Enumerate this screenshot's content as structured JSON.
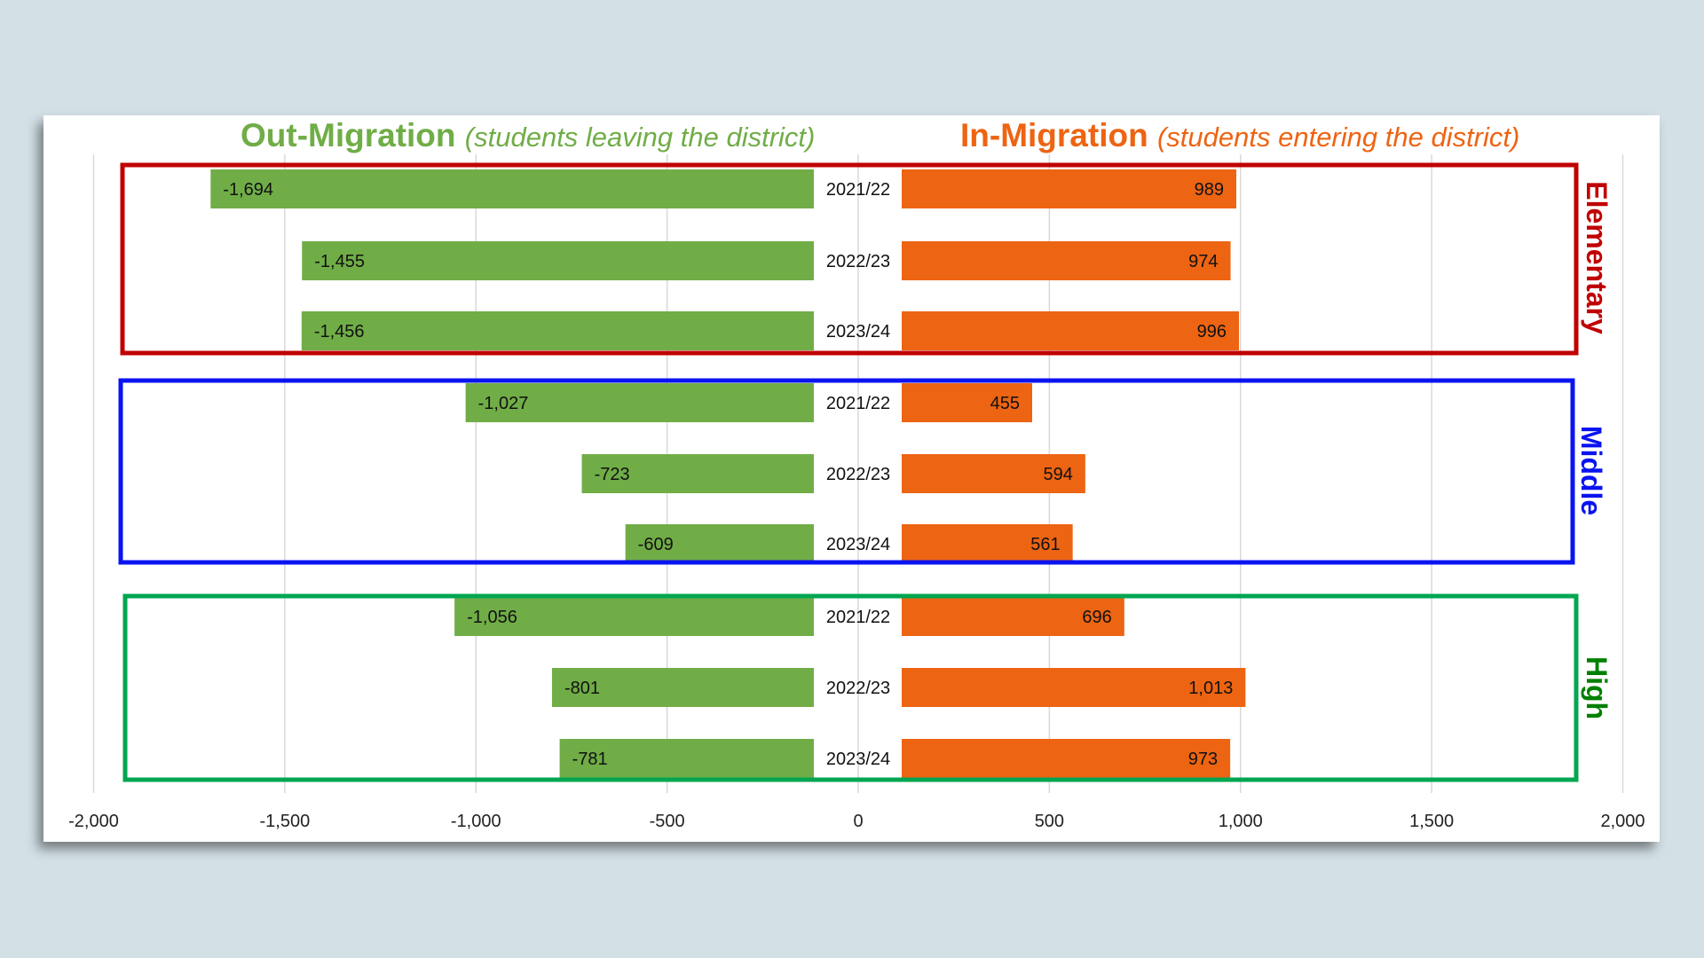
{
  "chart_data": {
    "type": "bar",
    "orientation": "horizontal-diverging",
    "titles": {
      "left": {
        "main": "Out-Migration",
        "sub": "(students leaving the district)",
        "color": "#70ad47"
      },
      "right": {
        "main": "In-Migration",
        "sub": "(students entering the district)",
        "color": "#ed6412"
      }
    },
    "xlim": [
      -2000,
      2000
    ],
    "xticks": [
      -2000,
      -1500,
      -1000,
      -500,
      0,
      500,
      1000,
      1500,
      2000
    ],
    "xtick_labels": [
      "-2,000",
      "-1,500",
      "-1,000",
      "-500",
      "0",
      "500",
      "1,000",
      "1,500",
      "2,000"
    ],
    "grid": "vertical",
    "groups": [
      {
        "name": "Elementary",
        "color": "#c00000",
        "rows": [
          {
            "year": "2021/22",
            "out": -1694,
            "out_label": "-1,694",
            "in": 989,
            "in_label": "989"
          },
          {
            "year": "2022/23",
            "out": -1455,
            "out_label": "-1,455",
            "in": 974,
            "in_label": "974"
          },
          {
            "year": "2023/24",
            "out": -1456,
            "out_label": "-1,456",
            "in": 996,
            "in_label": "996"
          }
        ]
      },
      {
        "name": "Middle",
        "color": "#0a14f0",
        "rows": [
          {
            "year": "2021/22",
            "out": -1027,
            "out_label": "-1,027",
            "in": 455,
            "in_label": "455"
          },
          {
            "year": "2022/23",
            "out": -723,
            "out_label": "-723",
            "in": 594,
            "in_label": "594"
          },
          {
            "year": "2023/24",
            "out": -609,
            "out_label": "-609",
            "in": 561,
            "in_label": "561"
          }
        ]
      },
      {
        "name": "High",
        "color": "#00a651",
        "side_color": "#008000",
        "rows": [
          {
            "year": "2021/22",
            "out": -1056,
            "out_label": "-1,056",
            "in": 696,
            "in_label": "696"
          },
          {
            "year": "2022/23",
            "out": -801,
            "out_label": "-801",
            "in": 1013,
            "in_label": "1,013"
          },
          {
            "year": "2023/24",
            "out": -781,
            "out_label": "-781",
            "in": 973,
            "in_label": "973"
          }
        ]
      }
    ],
    "colors": {
      "out": "#70ad47",
      "in": "#ed6412"
    }
  }
}
